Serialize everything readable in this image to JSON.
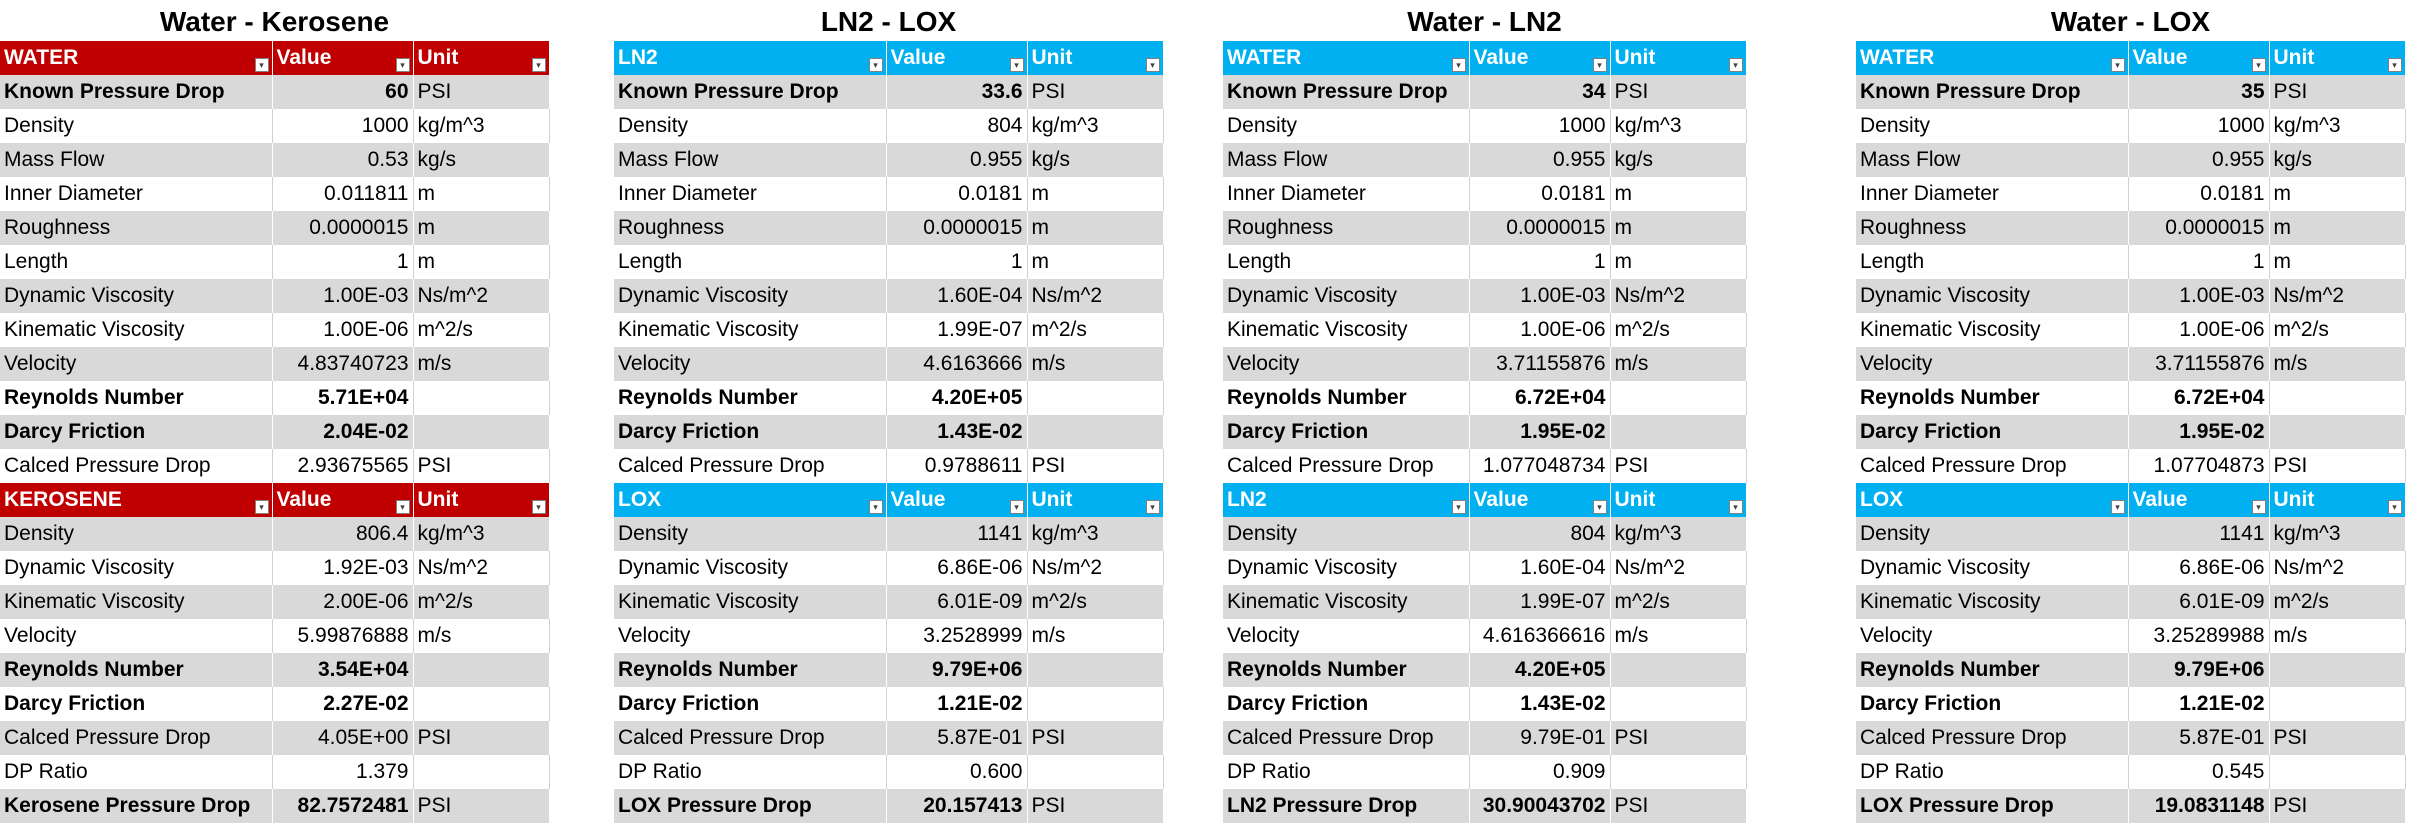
{
  "blocks": [
    {
      "title": "Water - Kerosene",
      "color": "#c00000",
      "t1": {
        "headers": [
          "WATER",
          "Value",
          "Unit"
        ],
        "rows": [
          [
            "Known Pressure Drop",
            "60",
            "PSI",
            true
          ],
          [
            "Density",
            "1000",
            "kg/m^3",
            false
          ],
          [
            "Mass Flow",
            "0.53",
            "kg/s",
            false
          ],
          [
            "Inner Diameter",
            "0.011811",
            "m",
            false
          ],
          [
            "Roughness",
            "0.0000015",
            "m",
            false
          ],
          [
            "Length",
            "1",
            "m",
            false
          ],
          [
            "Dynamic Viscosity",
            "1.00E-03",
            "Ns/m^2",
            false
          ],
          [
            "Kinematic Viscosity",
            "1.00E-06",
            "m^2/s",
            false
          ],
          [
            "Velocity",
            "4.83740723",
            "m/s",
            false
          ],
          [
            "Reynolds Number",
            "5.71E+04",
            "",
            true
          ],
          [
            "Darcy Friction",
            "2.04E-02",
            "",
            true
          ],
          [
            "Calced Pressure Drop",
            "2.93675565",
            "PSI",
            false
          ]
        ]
      },
      "t2": {
        "headers": [
          "KEROSENE",
          "Value",
          "Unit"
        ],
        "rows": [
          [
            "Density",
            "806.4",
            "kg/m^3",
            false
          ],
          [
            "Dynamic Viscosity",
            "1.92E-03",
            "Ns/m^2",
            false
          ],
          [
            "Kinematic Viscosity",
            "2.00E-06",
            "m^2/s",
            false
          ],
          [
            "Velocity",
            "5.99876888",
            "m/s",
            false
          ],
          [
            "Reynolds Number",
            "3.54E+04",
            "",
            true
          ],
          [
            "Darcy Friction",
            "2.27E-02",
            "",
            true
          ],
          [
            "Calced Pressure Drop",
            "4.05E+00",
            "PSI",
            false
          ],
          [
            "DP Ratio",
            "1.379",
            "",
            false
          ],
          [
            "Kerosene Pressure Drop",
            "82.7572481",
            "PSI",
            true
          ]
        ]
      }
    },
    {
      "title": "LN2 - LOX",
      "color": "#00b0f0",
      "t1": {
        "headers": [
          "LN2",
          "Value",
          "Unit"
        ],
        "rows": [
          [
            "Known Pressure Drop",
            "33.6",
            "PSI",
            true
          ],
          [
            "Density",
            "804",
            "kg/m^3",
            false
          ],
          [
            "Mass Flow",
            "0.955",
            "kg/s",
            false
          ],
          [
            "Inner Diameter",
            "0.0181",
            "m",
            false
          ],
          [
            "Roughness",
            "0.0000015",
            "m",
            false
          ],
          [
            "Length",
            "1",
            "m",
            false
          ],
          [
            "Dynamic Viscosity",
            "1.60E-04",
            "Ns/m^2",
            false
          ],
          [
            "Kinematic Viscosity",
            "1.99E-07",
            "m^2/s",
            false
          ],
          [
            "Velocity",
            "4.6163666",
            "m/s",
            false
          ],
          [
            "Reynolds Number",
            "4.20E+05",
            "",
            true
          ],
          [
            "Darcy Friction",
            "1.43E-02",
            "",
            true
          ],
          [
            "Calced Pressure Drop",
            "0.9788611",
            "PSI",
            false
          ]
        ]
      },
      "t2": {
        "headers": [
          "LOX",
          "Value",
          "Unit"
        ],
        "rows": [
          [
            "Density",
            "1141",
            "kg/m^3",
            false
          ],
          [
            "Dynamic Viscosity",
            "6.86E-06",
            "Ns/m^2",
            false
          ],
          [
            "Kinematic Viscosity",
            "6.01E-09",
            "m^2/s",
            false
          ],
          [
            "Velocity",
            "3.2528999",
            "m/s",
            false
          ],
          [
            "Reynolds Number",
            "9.79E+06",
            "",
            true
          ],
          [
            "Darcy Friction",
            "1.21E-02",
            "",
            true
          ],
          [
            "Calced Pressure Drop",
            "5.87E-01",
            "PSI",
            false
          ],
          [
            "DP Ratio",
            "0.600",
            "",
            false
          ],
          [
            "LOX Pressure Drop",
            "20.157413",
            "PSI",
            true
          ]
        ]
      }
    },
    {
      "title": "Water - LN2",
      "color": "#00b0f0",
      "t1": {
        "headers": [
          "WATER",
          "Value",
          "Unit"
        ],
        "rows": [
          [
            "Known Pressure Drop",
            "34",
            "PSI",
            true
          ],
          [
            "Density",
            "1000",
            "kg/m^3",
            false
          ],
          [
            "Mass Flow",
            "0.955",
            "kg/s",
            false
          ],
          [
            "Inner Diameter",
            "0.0181",
            "m",
            false
          ],
          [
            "Roughness",
            "0.0000015",
            "m",
            false
          ],
          [
            "Length",
            "1",
            "m",
            false
          ],
          [
            "Dynamic Viscosity",
            "1.00E-03",
            "Ns/m^2",
            false
          ],
          [
            "Kinematic Viscosity",
            "1.00E-06",
            "m^2/s",
            false
          ],
          [
            "Velocity",
            "3.71155876",
            "m/s",
            false
          ],
          [
            "Reynolds Number",
            "6.72E+04",
            "",
            true
          ],
          [
            "Darcy Friction",
            "1.95E-02",
            "",
            true
          ],
          [
            "Calced Pressure Drop",
            "1.077048734",
            "PSI",
            false
          ]
        ]
      },
      "t2": {
        "headers": [
          "LN2",
          "Value",
          "Unit"
        ],
        "rows": [
          [
            "Density",
            "804",
            "kg/m^3",
            false
          ],
          [
            "Dynamic Viscosity",
            "1.60E-04",
            "Ns/m^2",
            false
          ],
          [
            "Kinematic Viscosity",
            "1.99E-07",
            "m^2/s",
            false
          ],
          [
            "Velocity",
            "4.616366616",
            "m/s",
            false
          ],
          [
            "Reynolds Number",
            "4.20E+05",
            "",
            true
          ],
          [
            "Darcy Friction",
            "1.43E-02",
            "",
            true
          ],
          [
            "Calced Pressure Drop",
            "9.79E-01",
            "PSI",
            false
          ],
          [
            "DP Ratio",
            "0.909",
            "",
            false
          ],
          [
            "LN2 Pressure Drop",
            "30.90043702",
            "PSI",
            true
          ]
        ]
      }
    },
    {
      "title": "Water - LOX",
      "color": "#00b0f0",
      "t1": {
        "headers": [
          "WATER",
          "Value",
          "Unit"
        ],
        "rows": [
          [
            "Known Pressure Drop",
            "35",
            "PSI",
            true
          ],
          [
            "Density",
            "1000",
            "kg/m^3",
            false
          ],
          [
            "Mass Flow",
            "0.955",
            "kg/s",
            false
          ],
          [
            "Inner Diameter",
            "0.0181",
            "m",
            false
          ],
          [
            "Roughness",
            "0.0000015",
            "m",
            false
          ],
          [
            "Length",
            "1",
            "m",
            false
          ],
          [
            "Dynamic Viscosity",
            "1.00E-03",
            "Ns/m^2",
            false
          ],
          [
            "Kinematic Viscosity",
            "1.00E-06",
            "m^2/s",
            false
          ],
          [
            "Velocity",
            "3.71155876",
            "m/s",
            false
          ],
          [
            "Reynolds Number",
            "6.72E+04",
            "",
            true
          ],
          [
            "Darcy Friction",
            "1.95E-02",
            "",
            true
          ],
          [
            "Calced Pressure Drop",
            "1.07704873",
            "PSI",
            false
          ]
        ]
      },
      "t2": {
        "headers": [
          "LOX",
          "Value",
          "Unit"
        ],
        "rows": [
          [
            "Density",
            "1141",
            "kg/m^3",
            false
          ],
          [
            "Dynamic Viscosity",
            "6.86E-06",
            "Ns/m^2",
            false
          ],
          [
            "Kinematic Viscosity",
            "6.01E-09",
            "m^2/s",
            false
          ],
          [
            "Velocity",
            "3.25289988",
            "m/s",
            false
          ],
          [
            "Reynolds Number",
            "9.79E+06",
            "",
            true
          ],
          [
            "Darcy Friction",
            "1.21E-02",
            "",
            true
          ],
          [
            "Calced Pressure Drop",
            "5.87E-01",
            "PSI",
            false
          ],
          [
            "DP Ratio",
            "0.545",
            "",
            false
          ],
          [
            "LOX Pressure Drop",
            "19.0831148",
            "PSI",
            true
          ]
        ]
      }
    }
  ]
}
